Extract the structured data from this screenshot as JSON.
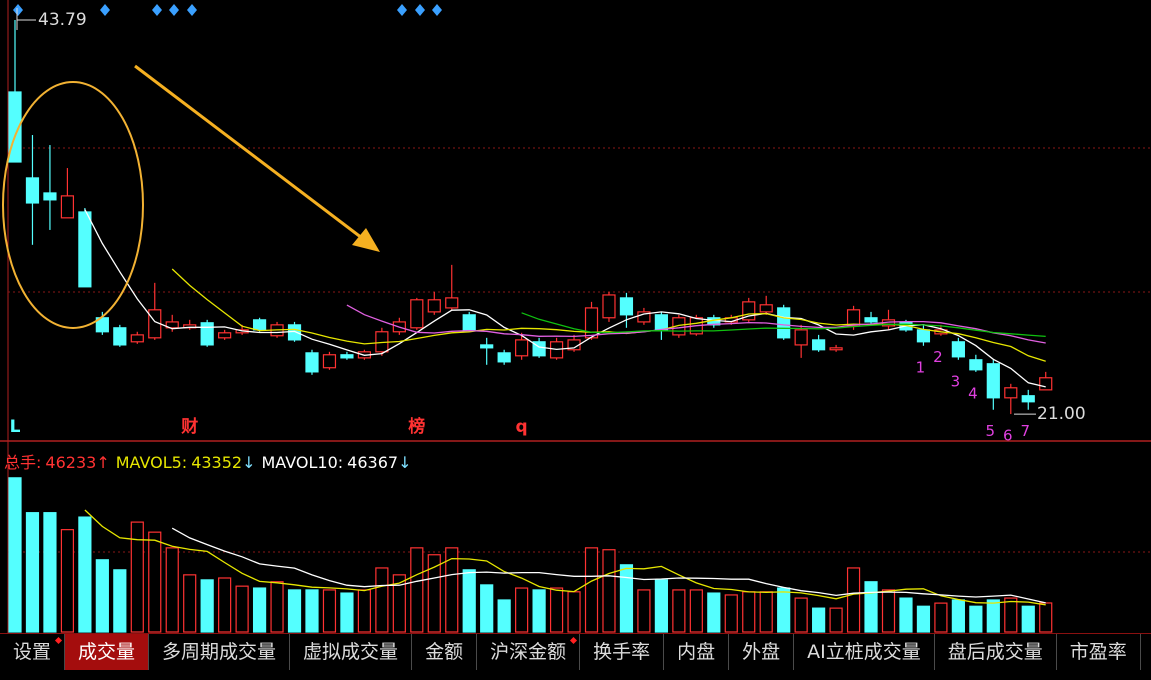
{
  "chart_data": [
    {
      "type": "candlestick",
      "ylim": [
        19.5,
        44.95
      ],
      "up_color": "#ff3232",
      "down_color": "#54ffff",
      "open": [
        39.63,
        34.66,
        33.79,
        32.35,
        32.69,
        26.57,
        25.99,
        25.18,
        25.41,
        25.99,
        25.99,
        26.28,
        25.41,
        25.7,
        26.45,
        25.53,
        26.16,
        24.54,
        23.68,
        24.43,
        24.25,
        24.6,
        25.76,
        25.99,
        26.91,
        27.14,
        26.74,
        25.0,
        24.54,
        24.37,
        25.18,
        24.25,
        24.72,
        25.41,
        26.57,
        27.72,
        26.33,
        26.74,
        25.58,
        25.64,
        26.57,
        26.33,
        26.45,
        26.91,
        27.14,
        25.0,
        25.29,
        24.72,
        26.1,
        26.57,
        26.1,
        26.33,
        25.87,
        25.64,
        25.18,
        24.14,
        23.91,
        21.94,
        22.06,
        22.4
      ],
      "high": [
        43.79,
        37.14,
        36.56,
        35.23,
        32.92,
        26.91,
        26.16,
        25.76,
        28.59,
        26.74,
        26.45,
        26.45,
        25.87,
        26.16,
        26.57,
        26.33,
        26.33,
        24.72,
        24.6,
        24.6,
        24.72,
        25.99,
        26.57,
        27.72,
        28.07,
        29.63,
        26.91,
        25.41,
        24.72,
        25.7,
        25.41,
        25.41,
        25.58,
        27.49,
        28.07,
        28.01,
        27.14,
        26.91,
        26.74,
        26.74,
        26.74,
        26.74,
        27.72,
        27.84,
        27.32,
        26.16,
        25.58,
        25.0,
        27.26,
        26.91,
        27.03,
        26.45,
        26.16,
        26.16,
        25.41,
        24.43,
        24.14,
        22.75,
        22.4,
        23.44
      ],
      "low": [
        35.58,
        30.79,
        31.65,
        32.35,
        28.36,
        25.58,
        24.89,
        25.06,
        25.29,
        25.76,
        25.87,
        24.89,
        25.29,
        25.58,
        25.76,
        25.41,
        25.18,
        23.27,
        23.56,
        24.14,
        24.14,
        24.37,
        25.58,
        25.87,
        26.74,
        27.03,
        25.76,
        23.85,
        23.85,
        24.14,
        24.25,
        24.14,
        24.6,
        25.29,
        26.33,
        25.99,
        26.16,
        25.29,
        25.41,
        25.53,
        25.99,
        26.16,
        26.33,
        26.74,
        25.29,
        24.25,
        24.6,
        24.6,
        25.87,
        26.16,
        25.87,
        25.76,
        24.95,
        25.53,
        24.14,
        23.44,
        21.25,
        21.0,
        21.25,
        22.4
      ],
      "close": [
        35.58,
        33.21,
        33.39,
        33.62,
        28.36,
        25.76,
        25.0,
        25.58,
        27.03,
        26.33,
        26.16,
        25.0,
        25.7,
        25.87,
        25.87,
        26.16,
        25.29,
        23.44,
        24.43,
        24.25,
        24.6,
        25.76,
        26.33,
        27.61,
        27.61,
        27.72,
        25.87,
        24.83,
        24.02,
        25.29,
        24.37,
        25.18,
        25.29,
        27.14,
        27.89,
        26.74,
        26.91,
        25.87,
        26.57,
        26.57,
        26.16,
        26.57,
        27.49,
        27.32,
        25.41,
        25.87,
        24.72,
        24.83,
        27.03,
        26.33,
        26.45,
        25.87,
        25.18,
        25.87,
        24.31,
        23.56,
        21.94,
        22.52,
        21.71,
        23.1
      ],
      "series": [
        {
          "color": "#ffffff",
          "values": [
            null,
            null,
            null,
            null,
            32.83,
            30.87,
            29.23,
            27.66,
            26.35,
            25.94,
            26.02,
            26.02,
            26.04,
            25.81,
            25.72,
            25.72,
            25.78,
            25.33,
            25.04,
            24.71,
            24.4,
            24.5,
            25.07,
            25.71,
            26.38,
            27.01,
            27.03,
            26.73,
            26.01,
            25.55,
            24.88,
            24.74,
            24.83,
            25.45,
            25.97,
            26.45,
            26.79,
            26.91,
            26.8,
            26.53,
            26.42,
            26.35,
            26.67,
            26.82,
            26.59,
            26.53,
            26.16,
            25.63,
            25.57,
            25.76,
            25.87,
            26.1,
            26.17,
            25.94,
            25.54,
            24.96,
            24.17,
            23.64,
            22.81,
            22.57
          ]
        },
        {
          "color": "#e6e600",
          "values": [
            null,
            null,
            null,
            null,
            null,
            null,
            null,
            null,
            null,
            29.39,
            28.44,
            27.62,
            26.85,
            26.08,
            25.83,
            25.87,
            25.9,
            25.69,
            25.43,
            25.22,
            25.06,
            25.14,
            25.2,
            25.37,
            25.55,
            25.7,
            25.76,
            25.9,
            25.86,
            25.96,
            25.94,
            25.88,
            25.78,
            25.73,
            25.76,
            25.66,
            25.77,
            25.87,
            26.13,
            26.25,
            26.43,
            26.57,
            26.79,
            26.81,
            26.56,
            26.47,
            26.26,
            26.15,
            26.2,
            26.17,
            26.2,
            26.13,
            25.9,
            25.76,
            25.65,
            25.42,
            25.14,
            24.91,
            24.37,
            24.05
          ]
        },
        {
          "color": "#e060e0",
          "values": [
            null,
            null,
            null,
            null,
            null,
            null,
            null,
            null,
            null,
            null,
            null,
            null,
            null,
            null,
            null,
            null,
            null,
            null,
            null,
            27.3,
            26.75,
            26.38,
            26.03,
            25.73,
            25.69,
            25.79,
            25.83,
            25.79,
            25.64,
            25.59,
            25.5,
            25.51,
            25.49,
            25.55,
            25.65,
            25.68,
            25.76,
            25.89,
            25.99,
            26.11,
            26.19,
            26.23,
            26.29,
            26.27,
            26.16,
            26.07,
            26.01,
            26.01,
            26.16,
            26.21,
            26.32,
            26.35,
            26.35,
            26.28,
            26.1,
            25.94,
            25.7,
            25.53,
            25.29,
            25.11
          ]
        },
        {
          "color": "#10c010",
          "values": [
            null,
            null,
            null,
            null,
            null,
            null,
            null,
            null,
            null,
            null,
            null,
            null,
            null,
            null,
            null,
            null,
            null,
            null,
            null,
            null,
            null,
            null,
            null,
            null,
            null,
            null,
            null,
            null,
            null,
            26.86,
            26.48,
            26.21,
            25.94,
            25.73,
            25.71,
            25.75,
            25.81,
            25.82,
            25.8,
            25.81,
            25.81,
            25.86,
            25.92,
            25.97,
            25.96,
            25.95,
            25.93,
            25.97,
            26.06,
            26.13,
            26.19,
            26.2,
            26.16,
            26.1,
            25.99,
            25.85,
            25.72,
            25.64,
            25.57,
            25.49
          ]
        }
      ],
      "high_label": 43.79,
      "low_label": {
        "value": 21.0,
        "label": "21.00"
      },
      "events": [
        {
          "text": "L",
          "color": "#54ffff"
        },
        null,
        null,
        null,
        null,
        null,
        null,
        null,
        null,
        null,
        {
          "text": "财",
          "color": "#ff3232"
        },
        null,
        null,
        null,
        null,
        null,
        null,
        null,
        null,
        null,
        null,
        null,
        null,
        {
          "text": "榜",
          "color": "#ff3232"
        },
        null,
        null,
        null,
        null,
        null,
        {
          "text": "q",
          "color": "#ff3232"
        },
        null,
        null,
        null,
        null,
        null,
        null,
        null,
        null,
        null,
        null,
        null,
        null,
        null,
        null,
        null,
        null,
        null,
        null,
        null,
        null,
        null,
        null,
        null,
        null,
        null,
        null,
        null,
        null,
        null,
        null
      ],
      "td_color": "#e040e0",
      "td_counts": [
        null,
        null,
        null,
        null,
        null,
        null,
        null,
        null,
        null,
        null,
        null,
        null,
        null,
        null,
        null,
        null,
        null,
        null,
        null,
        null,
        null,
        null,
        null,
        null,
        null,
        null,
        null,
        null,
        null,
        null,
        null,
        null,
        null,
        null,
        null,
        null,
        null,
        null,
        null,
        null,
        null,
        null,
        null,
        null,
        null,
        null,
        null,
        null,
        null,
        null,
        null,
        null,
        1,
        2,
        3,
        4,
        5,
        6,
        7,
        null
      ]
    },
    {
      "type": "volume",
      "ylim": [
        0,
        250000
      ],
      "header": [
        {
          "label": "总手:",
          "value": 46233,
          "arrow": "↑",
          "color": "#ff3232",
          "arrow_color": "#ff3232"
        },
        {
          "label": "MAVOL5:",
          "value": 43352,
          "arrow": "↓",
          "color": "#e6e600",
          "arrow_color": "#7fe0ff"
        },
        {
          "label": "MAVOL10:",
          "value": 46367,
          "arrow": "↓",
          "color": "#ffffff",
          "arrow_color": "#7fe0ff"
        }
      ],
      "values": [
        245500,
        190000,
        190000,
        163000,
        183000,
        115000,
        99000,
        175000,
        159000,
        134000,
        91000,
        83000,
        86000,
        73000,
        70000,
        80000,
        67000,
        67000,
        67000,
        62000,
        67000,
        102000,
        91000,
        134000,
        123000,
        134000,
        99000,
        75000,
        51000,
        70000,
        67000,
        70000,
        64000,
        134000,
        131000,
        107000,
        67000,
        83000,
        67000,
        67000,
        62000,
        59000,
        64000,
        64000,
        70000,
        54000,
        38000,
        38000,
        102000,
        80000,
        67000,
        54000,
        41000,
        46000,
        51000,
        41000,
        51000,
        54000,
        41000,
        46233
      ],
      "series": [
        {
          "color": "#e6e600",
          "values": [
            null,
            null,
            null,
            null,
            194300,
            168200,
            150000,
            147000,
            146200,
            136400,
            131600,
            128400,
            110600,
            93400,
            80600,
            78400,
            75200,
            71400,
            70200,
            68600,
            66000,
            73000,
            77800,
            91200,
            103400,
            116800,
            116200,
            113000,
            96400,
            85800,
            72400,
            66600,
            64400,
            81000,
            93200,
            101200,
            100600,
            104400,
            91000,
            78200,
            69200,
            67600,
            63800,
            63200,
            63800,
            62200,
            58000,
            52800,
            60400,
            62400,
            65000,
            68200,
            68800,
            57600,
            51800,
            46600,
            46000,
            48600,
            47600,
            43352
          ]
        },
        {
          "color": "#ffffff",
          "values": [
            null,
            null,
            null,
            null,
            null,
            null,
            null,
            null,
            null,
            165350,
            149900,
            139200,
            128800,
            119800,
            108500,
            105000,
            101800,
            91000,
            81800,
            74600,
            72200,
            74100,
            74600,
            80700,
            86000,
            91400,
            94600,
            95400,
            93800,
            94600,
            94600,
            91400,
            88700,
            88700,
            89500,
            86800,
            83600,
            84400,
            86000,
            85700,
            85200,
            84100,
            84100,
            77100,
            71000,
            65700,
            62800,
            58300,
            61800,
            63100,
            63600,
            63100,
            60800,
            59000,
            57100,
            55800,
            57100,
            58700,
            52600,
            46367
          ]
        }
      ]
    }
  ],
  "tabs": [
    {
      "label": "设置",
      "dot": true
    },
    {
      "label": "成交量",
      "selected": true
    },
    {
      "label": "多周期成交量"
    },
    {
      "label": "虚拟成交量"
    },
    {
      "label": "金额"
    },
    {
      "label": "沪深金额",
      "dot": true
    },
    {
      "label": "换手率"
    },
    {
      "label": "内盘"
    },
    {
      "label": "外盘"
    },
    {
      "label": "AI立桩成交量"
    },
    {
      "label": "盘后成交量"
    },
    {
      "label": "市盈率"
    }
  ]
}
